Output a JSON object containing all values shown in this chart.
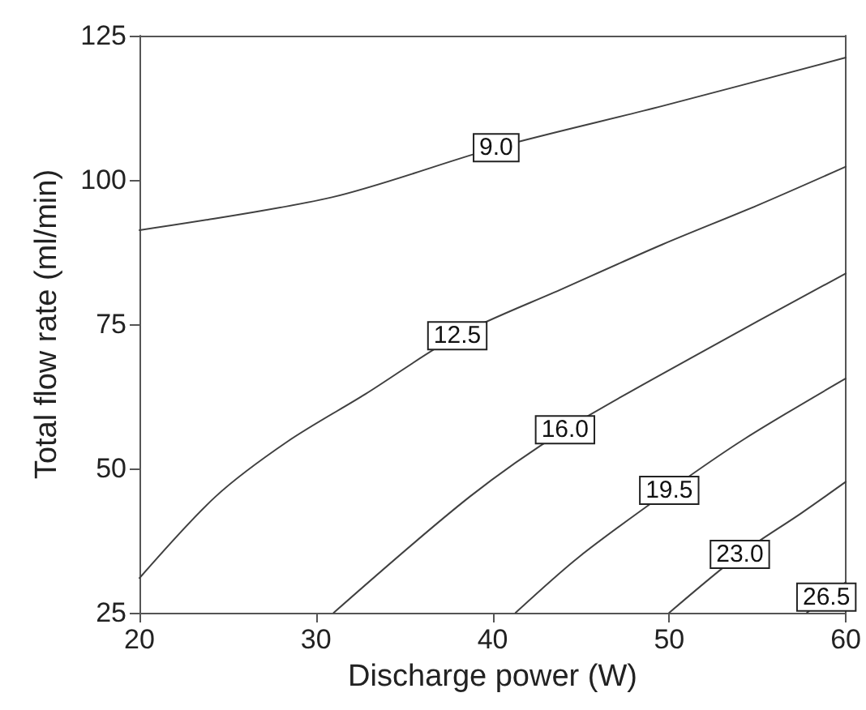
{
  "chart_data": {
    "type": "line",
    "xlabel": "Discharge power (W)",
    "ylabel": "Total flow rate (ml/min)",
    "xlim": [
      20,
      60
    ],
    "xticks": [
      20,
      30,
      40,
      50,
      60
    ],
    "ylim": [
      25,
      125
    ],
    "yticks": [
      25,
      50,
      75,
      100,
      125
    ],
    "grid": false,
    "legend": false,
    "marker": "none",
    "line_style": "solid",
    "series": [
      {
        "name": "9.0",
        "color": "#404040",
        "x": [
          20,
          30.9,
          40.2,
          49.6,
          60
        ],
        "values": [
          91.3,
          97,
          105.6,
          112.8,
          121.2
        ]
      },
      {
        "name": "12.5",
        "color": "#404040",
        "x": [
          20,
          24.3,
          28.4,
          32.8,
          38,
          44,
          49.6,
          55,
          60
        ],
        "values": [
          31,
          45.1,
          54.7,
          62.9,
          73,
          81.2,
          88.8,
          95.6,
          102.3
        ]
      },
      {
        "name": "16.0",
        "color": "#404040",
        "x": [
          31,
          38.7,
          44.1,
          51.2,
          60
        ],
        "values": [
          25,
          45.1,
          56.7,
          69.1,
          83.8
        ]
      },
      {
        "name": "19.5",
        "color": "#404040",
        "x": [
          41.3,
          44.9,
          50,
          54.3,
          60
        ],
        "values": [
          25,
          34.7,
          46.2,
          55.2,
          65.6
        ]
      },
      {
        "name": "23.0",
        "color": "#404040",
        "x": [
          50,
          54,
          57.5,
          60
        ],
        "values": [
          25,
          35.1,
          42.3,
          47.7
        ]
      },
      {
        "name": "26.5",
        "color": "#404040",
        "x": [
          57.8,
          58.9,
          60
        ],
        "values": [
          25,
          27.7,
          30.3
        ]
      }
    ]
  }
}
